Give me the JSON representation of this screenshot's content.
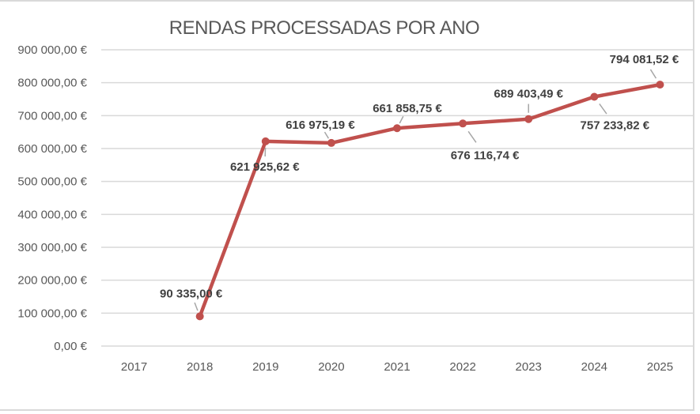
{
  "chart_data": {
    "type": "line",
    "title": "RENDAS PROCESSADAS POR ANO",
    "xlabel": "",
    "ylabel": "",
    "categories": [
      "2017",
      "2018",
      "2019",
      "2020",
      "2021",
      "2022",
      "2023",
      "2024",
      "2025"
    ],
    "values": [
      null,
      90335.0,
      621925.62,
      616975.19,
      661858.75,
      676116.74,
      689403.49,
      757233.82,
      794081.52
    ],
    "data_labels": [
      "",
      "90 335,00 €",
      "621 925,62 €",
      "616 975,19 €",
      "661 858,75 €",
      "676 116,74 €",
      "689 403,49 €",
      "757 233,82 €",
      "794 081,52 €"
    ],
    "ylim": [
      0,
      900000
    ],
    "yticks": [
      "0,00 €",
      "100 000,00 €",
      "200 000,00 €",
      "300 000,00 €",
      "400 000,00 €",
      "500 000,00 €",
      "600 000,00 €",
      "700 000,00 €",
      "800 000,00 €",
      "900 000,00 €"
    ],
    "grid": true,
    "legend": "none",
    "line_color": "#c0504d"
  }
}
